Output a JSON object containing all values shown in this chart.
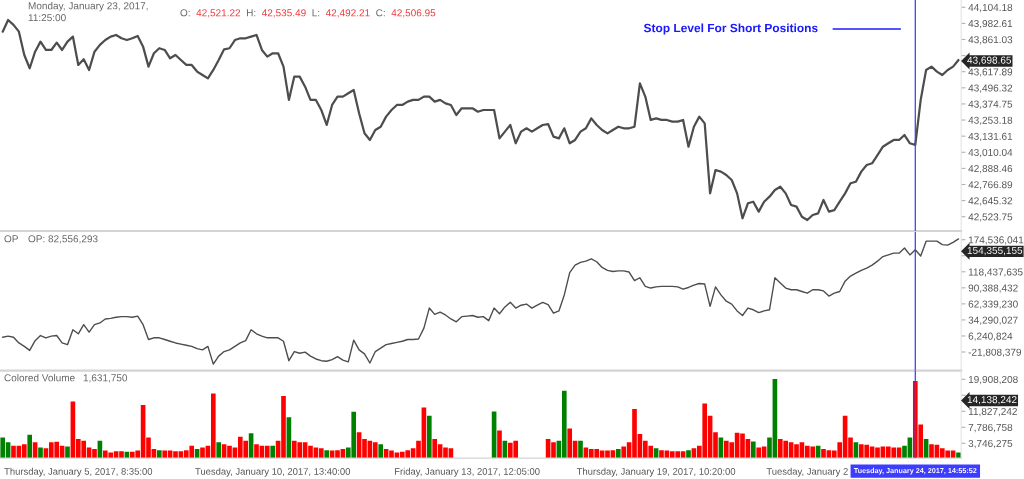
{
  "chart_data": [
    {
      "type": "line",
      "categories": [
        null,
        null,
        null,
        null,
        null,
        null,
        null,
        null,
        null,
        null,
        null,
        null,
        null,
        null,
        "Thursday, January 5, 2017, 8:35:00",
        null,
        null,
        null,
        null,
        null,
        null,
        null,
        null,
        null,
        null,
        null,
        null,
        null,
        null,
        null,
        null,
        null,
        null,
        null,
        null,
        null,
        null,
        null,
        null,
        null,
        null,
        null,
        null,
        null,
        null,
        null,
        null,
        null,
        null,
        null,
        "Tuesday, January 10, 2017, 13:40:00",
        null,
        null,
        null,
        null,
        null,
        null,
        null,
        null,
        null,
        null,
        null,
        null,
        null,
        null,
        null,
        null,
        null,
        null,
        null,
        null,
        null,
        null,
        null,
        null,
        null,
        null,
        null,
        null,
        null,
        null,
        null,
        null,
        null,
        null,
        null,
        "Friday, January 13, 2017, 12:05:00",
        null,
        null,
        null,
        null,
        null,
        null,
        null,
        null,
        null,
        null,
        null,
        null,
        null,
        null,
        null,
        null,
        null,
        null,
        null,
        null,
        null,
        null,
        null,
        null,
        null,
        null,
        null,
        null,
        null,
        null,
        null,
        null,
        null,
        null,
        "Thursday, January 19, 2017, 10:20:00",
        null,
        null,
        null,
        null,
        null,
        null,
        null,
        null,
        null,
        null,
        null,
        null,
        null,
        null,
        null,
        null,
        null,
        null,
        null,
        null,
        null,
        null,
        null,
        null,
        null,
        null,
        null,
        "Tuesday, January 2",
        null,
        null,
        null,
        null,
        null,
        null,
        null,
        null,
        null,
        null,
        null,
        null,
        null,
        null,
        null,
        null,
        null,
        null,
        null,
        "Tuesday, January 24, 2017, 14:55:52",
        null,
        null,
        null,
        null,
        null,
        null,
        null,
        null
      ],
      "series": [
        {
          "color": "#4d4d4d",
          "values": [
            43920,
            44008,
            43971,
            43920,
            43744,
            43644,
            43769,
            43845,
            43782,
            43782,
            43837,
            43782,
            43845,
            43883,
            43669,
            43712,
            43631,
            43769,
            43820,
            43857,
            43883,
            43895,
            43870,
            43857,
            43870,
            43888,
            43807,
            43656,
            43757,
            43795,
            43782,
            43719,
            43744,
            43706,
            43669,
            43669,
            43619,
            43593,
            43568,
            43631,
            43706,
            43787,
            43795,
            43857,
            43870,
            43870,
            43883,
            43895,
            43782,
            43732,
            43757,
            43757,
            43656,
            43405,
            43581,
            43581,
            43505,
            43405,
            43405,
            43329,
            43216,
            43367,
            43430,
            43430,
            43455,
            43480,
            43304,
            43153,
            43103,
            43178,
            43203,
            43279,
            43329,
            43367,
            43367,
            43392,
            43405,
            43405,
            43430,
            43430,
            43392,
            43405,
            43379,
            43367,
            43291,
            43342,
            43342,
            43342,
            43316,
            43329,
            43329,
            43329,
            43115,
            43166,
            43216,
            43078,
            43166,
            43191,
            43166,
            43191,
            43216,
            43223,
            43128,
            43115,
            43191,
            43078,
            43103,
            43166,
            43191,
            43266,
            43216,
            43178,
            43153,
            43178,
            43203,
            43191,
            43191,
            43203,
            43530,
            43430,
            43254,
            43266,
            43254,
            43254,
            43241,
            43241,
            43254,
            43052,
            43203,
            43279,
            43228,
            42700,
            42876,
            42864,
            42839,
            42801,
            42700,
            42512,
            42625,
            42637,
            42562,
            42637,
            42675,
            42725,
            42750,
            42700,
            42612,
            42600,
            42524,
            42499,
            42537,
            42549,
            42650,
            42562,
            42574,
            42637,
            42700,
            42776,
            42788,
            42864,
            42914,
            42927,
            42989,
            43052,
            43078,
            43103,
            43103,
            43140,
            43078,
            43065,
            43405,
            43631,
            43656,
            43619,
            43593,
            43631,
            43656,
            43706
          ]
        }
      ],
      "ylim": [
        42416,
        44159
      ],
      "yticks": [
        {
          "value": 44104.18,
          "label": "44,104.18"
        },
        {
          "value": 43982.61,
          "label": "43,982.61"
        },
        {
          "value": 43861.03,
          "label": "43,861.03"
        },
        {
          "value": 43739.46,
          "label": null
        },
        {
          "value": 43617.89,
          "label": "43,617.89"
        },
        {
          "value": 43496.32,
          "label": "43,496.32"
        },
        {
          "value": 43374.75,
          "label": "43,374.75"
        },
        {
          "value": 43253.18,
          "label": "43,253.18"
        },
        {
          "value": 43131.61,
          "label": "43,131.61"
        },
        {
          "value": 43010.04,
          "label": "43,010.04"
        },
        {
          "value": 42888.46,
          "label": "42,888.46"
        },
        {
          "value": 42766.89,
          "label": "42,766.89"
        },
        {
          "value": 42645.32,
          "label": "42,645.32"
        },
        {
          "value": 42523.75,
          "label": "42,523.75"
        }
      ],
      "tick_labels": "y",
      "annotations": [
        "Monday, January 23, 2017,\n11:25:00",
        "O: 42,521.22 H: 42,535.49 L: 42,492.21 C: 42,506.95",
        "43,698.65"
      ],
      "ref_lines": [
        {
          "axis": "x",
          "value": "Tuesday, January 24, 2017, 14:55:52",
          "color": "#3d3dff"
        },
        {
          "axis": "y",
          "value": 43940,
          "label": "Stop Level For Short Positions",
          "color": "#1a1aff"
        }
      ]
    },
    {
      "type": "line",
      "title": "OP",
      "categories": [
        null,
        null,
        null,
        null,
        null,
        null,
        null,
        null,
        null,
        null,
        null,
        null,
        null,
        null,
        "Thursday, January 5, 2017, 8:35:00",
        null,
        null,
        null,
        null,
        null,
        null,
        null,
        null,
        null,
        null,
        null,
        null,
        null,
        null,
        null,
        null,
        null,
        null,
        null,
        null,
        null,
        null,
        null,
        null,
        null,
        null,
        null,
        null,
        null,
        null,
        null,
        null,
        null,
        null,
        null,
        "Tuesday, January 10, 2017, 13:40:00",
        null,
        null,
        null,
        null,
        null,
        null,
        null,
        null,
        null,
        null,
        null,
        null,
        null,
        null,
        null,
        null,
        null,
        null,
        null,
        null,
        null,
        null,
        null,
        null,
        null,
        null,
        null,
        null,
        null,
        null,
        null,
        null,
        null,
        null,
        null,
        "Friday, January 13, 2017, 12:05:00",
        null,
        null,
        null,
        null,
        null,
        null,
        null,
        null,
        null,
        null,
        null,
        null,
        null,
        null,
        null,
        null,
        null,
        null,
        null,
        null,
        null,
        null,
        null,
        null,
        null,
        null,
        null,
        null,
        null,
        null,
        null,
        null,
        null,
        null,
        "Thursday, January 19, 2017, 10:20:00",
        null,
        null,
        null,
        null,
        null,
        null,
        null,
        null,
        null,
        null,
        null,
        null,
        null,
        null,
        null,
        null,
        null,
        null,
        null,
        null,
        null,
        null,
        null,
        null,
        null,
        null,
        null,
        "Tuesday, January 2",
        null,
        null,
        null,
        null,
        null,
        null,
        null,
        null,
        null,
        null,
        null,
        null,
        null,
        null,
        null,
        null,
        null,
        null,
        null,
        "Tuesday, January 24, 2017, 14:55:52",
        null,
        null,
        null,
        null,
        null,
        null,
        null,
        null
      ],
      "series": [
        {
          "color": "#4d4d4d",
          "values": [
            4000000,
            6000000,
            4000000,
            -6000000,
            -12000000,
            -19000000,
            -2000000,
            7000000,
            3000000,
            6000000,
            7000000,
            -6000000,
            -9000000,
            17000000,
            10000000,
            26000000,
            13000000,
            26000000,
            29000000,
            36000000,
            37000000,
            39000000,
            40000000,
            40000000,
            39000000,
            41000000,
            26000000,
            0,
            3000000,
            3000000,
            0,
            -3000000,
            -6000000,
            -8000000,
            -10000000,
            -12000000,
            -16000000,
            -18000000,
            -12000000,
            -43000000,
            -29000000,
            -21000000,
            -18000000,
            -12000000,
            -6000000,
            -2000000,
            17000000,
            10000000,
            6000000,
            3000000,
            3000000,
            3000000,
            -3000000,
            -37000000,
            -21000000,
            -24000000,
            -22000000,
            -29000000,
            -34000000,
            -37000000,
            -38000000,
            -35000000,
            -30000000,
            -36000000,
            -39000000,
            -1000000,
            -18000000,
            -25000000,
            -41000000,
            -21000000,
            -15000000,
            -9000000,
            -7000000,
            -5000000,
            -3000000,
            0,
            0,
            1000000,
            20000000,
            55000000,
            44000000,
            48000000,
            43000000,
            36000000,
            31000000,
            40000000,
            41000000,
            42000000,
            39000000,
            40000000,
            33000000,
            55000000,
            45000000,
            57000000,
            65000000,
            55000000,
            60000000,
            62000000,
            55000000,
            60000000,
            65000000,
            61000000,
            46000000,
            50000000,
            78000000,
            117000000,
            130000000,
            135000000,
            137000000,
            141000000,
            136000000,
            126000000,
            121000000,
            119000000,
            120000000,
            120000000,
            118000000,
            103000000,
            108000000,
            93000000,
            90000000,
            92000000,
            93000000,
            93000000,
            93000000,
            92000000,
            88000000,
            91000000,
            95000000,
            98000000,
            97000000,
            58000000,
            92000000,
            78000000,
            67000000,
            62000000,
            50000000,
            42000000,
            55000000,
            52000000,
            47000000,
            50000000,
            52000000,
            108000000,
            99000000,
            90000000,
            87000000,
            87000000,
            84000000,
            81000000,
            87000000,
            87000000,
            85000000,
            76000000,
            81000000,
            84000000,
            102000000,
            111000000,
            116000000,
            121000000,
            125000000,
            130000000,
            137000000,
            145000000,
            148000000,
            151000000,
            151000000,
            160000000,
            148000000,
            157000000,
            146000000,
            172000000,
            172000000,
            172000000,
            166000000,
            165000000,
            170000000,
            176000000
          ]
        }
      ],
      "ylim": [
        -54500000,
        188000000
      ],
      "yticks": [
        {
          "value": 174536041,
          "label": "174,536,041"
        },
        {
          "value": 146486838,
          "label": null
        },
        {
          "value": 118437635,
          "label": "118,437,635"
        },
        {
          "value": 90388432,
          "label": "90,388,432"
        },
        {
          "value": 62339230,
          "label": "62,339,230"
        },
        {
          "value": 34290027,
          "label": "34,290,027"
        },
        {
          "value": 6240824,
          "label": "6,240,824"
        },
        {
          "value": -21808379,
          "label": "-21,808,379"
        }
      ],
      "tick_labels": "y",
      "annotations": [
        "OP: 82,556,293",
        "154,355,155"
      ],
      "ref_lines": [
        {
          "axis": "x",
          "value": "Tuesday, January 24, 2017, 14:55:52",
          "color": "#3d3dff"
        }
      ]
    },
    {
      "type": "bar",
      "title": "Colored Volume",
      "categories": [
        null,
        null,
        null,
        null,
        null,
        null,
        null,
        null,
        null,
        null,
        null,
        null,
        null,
        null,
        "Thursday, January 5, 2017, 8:35:00",
        null,
        null,
        null,
        null,
        null,
        null,
        null,
        null,
        null,
        null,
        null,
        null,
        null,
        null,
        null,
        null,
        null,
        null,
        null,
        null,
        null,
        null,
        null,
        null,
        null,
        null,
        null,
        null,
        null,
        null,
        null,
        null,
        null,
        null,
        null,
        "Tuesday, January 10, 2017, 13:40:00",
        null,
        null,
        null,
        null,
        null,
        null,
        null,
        null,
        null,
        null,
        null,
        null,
        null,
        null,
        null,
        null,
        null,
        null,
        null,
        null,
        null,
        null,
        null,
        null,
        null,
        null,
        null,
        null,
        null,
        null,
        null,
        null,
        null,
        null,
        null,
        "Friday, January 13, 2017, 12:05:00",
        null,
        null,
        null,
        null,
        null,
        null,
        null,
        null,
        null,
        null,
        null,
        null,
        null,
        null,
        null,
        null,
        null,
        null,
        null,
        null,
        null,
        null,
        null,
        null,
        null,
        null,
        null,
        null,
        null,
        null,
        null,
        null,
        null,
        null,
        "Thursday, January 19, 2017, 10:20:00",
        null,
        null,
        null,
        null,
        null,
        null,
        null,
        null,
        null,
        null,
        null,
        null,
        null,
        null,
        null,
        null,
        null,
        null,
        null,
        null,
        null,
        null,
        null,
        null,
        null,
        null,
        null,
        "Tuesday, January 2",
        null,
        null,
        null,
        null,
        null,
        null,
        null,
        null,
        null,
        null,
        null,
        null,
        null,
        null,
        null,
        null,
        null,
        null,
        null,
        "Tuesday, January 24, 2017, 14:55:52",
        null,
        null,
        null,
        null,
        null,
        null,
        null,
        null
      ],
      "series": [
        {
          "color": "#ff0000",
          "values": [
            null,
            null,
            3100000,
            3100000,
            3500000,
            null,
            4000000,
            null,
            2500000,
            4000000,
            4100000,
            3100000,
            null,
            14300000,
            4800000,
            4400000,
            2700000,
            2300000,
            null,
            1900000,
            1400000,
            1700000,
            1700000,
            null,
            1600000,
            1900000,
            13400000,
            5200000,
            2300000,
            null,
            1900000,
            1900000,
            1700000,
            1700000,
            2000000,
            3100000,
            null,
            2700000,
            3100000,
            16300000,
            null,
            3500000,
            3100000,
            2700000,
            5400000,
            4400000,
            null,
            3500000,
            3100000,
            3100000,
            null,
            4400000,
            15700000,
            null,
            4400000,
            4000000,
            4000000,
            3100000,
            2700000,
            2500000,
            null,
            1900000,
            2000000,
            2300000,
            null,
            null,
            6500000,
            4800000,
            4400000,
            4000000,
            null,
            2300000,
            1900000,
            1400000,
            1600000,
            2000000,
            2500000,
            4400000,
            12800000,
            null,
            4800000,
            3500000,
            2700000,
            2500000,
            null,
            null,
            null,
            null,
            null,
            null,
            null,
            null,
            7000000,
            null,
            3900000,
            4400000,
            null,
            null,
            null,
            null,
            null,
            4800000,
            4000000,
            null,
            null,
            7500000,
            4400000,
            null,
            2700000,
            2300000,
            2300000,
            1900000,
            1900000,
            2000000,
            null,
            2900000,
            4000000,
            12400000,
            6100000,
            4400000,
            3100000,
            null,
            2000000,
            1900000,
            1700000,
            1700000,
            1700000,
            null,
            2500000,
            3100000,
            13800000,
            10700000,
            6500000,
            null,
            4400000,
            4000000,
            6400000,
            6200000,
            4800000,
            null,
            2700000,
            2900000,
            null,
            null,
            4800000,
            4400000,
            4000000,
            3500000,
            4000000,
            3100000,
            2900000,
            null,
            2300000,
            2000000,
            1900000,
            4000000,
            10700000,
            5200000,
            null,
            3500000,
            3400000,
            2900000,
            2700000,
            2900000,
            2900000,
            2700000,
            2700000,
            null,
            null,
            19500000,
            8500000,
            null,
            3500000,
            3400000,
            2500000,
            1900000,
            1900000,
            null
          ]
        },
        {
          "color": "#008000",
          "values": [
            5200000,
            4000000,
            null,
            null,
            null,
            5900000,
            null,
            2700000,
            null,
            null,
            null,
            null,
            2900000,
            null,
            null,
            null,
            null,
            null,
            4400000,
            null,
            null,
            null,
            null,
            1600000,
            null,
            null,
            null,
            null,
            null,
            2000000,
            null,
            null,
            null,
            null,
            null,
            null,
            2300000,
            null,
            null,
            null,
            4000000,
            null,
            null,
            null,
            null,
            null,
            6300000,
            null,
            null,
            null,
            3100000,
            null,
            null,
            10300000,
            null,
            null,
            null,
            null,
            null,
            null,
            2000000,
            null,
            null,
            null,
            2700000,
            11700000,
            null,
            null,
            null,
            null,
            3500000,
            null,
            null,
            null,
            null,
            null,
            null,
            null,
            null,
            10700000,
            null,
            null,
            null,
            null,
            null,
            null,
            null,
            null,
            null,
            null,
            null,
            11800000,
            null,
            4400000,
            null,
            null,
            null,
            null,
            null,
            null,
            null,
            null,
            null,
            4400000,
            17000000,
            null,
            null,
            4400000,
            null,
            null,
            null,
            null,
            null,
            null,
            2300000,
            null,
            null,
            null,
            null,
            null,
            null,
            2500000,
            null,
            null,
            null,
            null,
            null,
            2000000,
            null,
            null,
            null,
            null,
            null,
            5200000,
            null,
            null,
            null,
            null,
            null,
            4200000,
            null,
            null,
            5200000,
            20000000,
            null,
            null,
            null,
            null,
            null,
            null,
            null,
            3100000,
            null,
            null,
            null,
            null,
            null,
            null,
            4000000,
            null,
            null,
            null,
            null,
            null,
            null,
            null,
            null,
            3100000,
            5200000,
            null,
            null,
            4800000,
            null,
            null,
            null,
            null,
            null,
            1400000
          ]
        }
      ],
      "ylim": [
        0,
        22000000
      ],
      "yticks": [
        {
          "value": 19908208,
          "label": "19,908,208"
        },
        {
          "value": 15867725,
          "label": null
        },
        {
          "value": 11827242,
          "label": "11,827,242"
        },
        {
          "value": 7786758,
          "label": "7,786,758"
        },
        {
          "value": 3746275,
          "label": "3,746,275"
        }
      ],
      "annotations": [
        "1,631,750",
        "14,138,242"
      ],
      "ref_lines": [
        {
          "axis": "x",
          "value": "Tuesday, January 24, 2017, 14:55:52",
          "color": "#3d3dff"
        }
      ]
    }
  ]
}
